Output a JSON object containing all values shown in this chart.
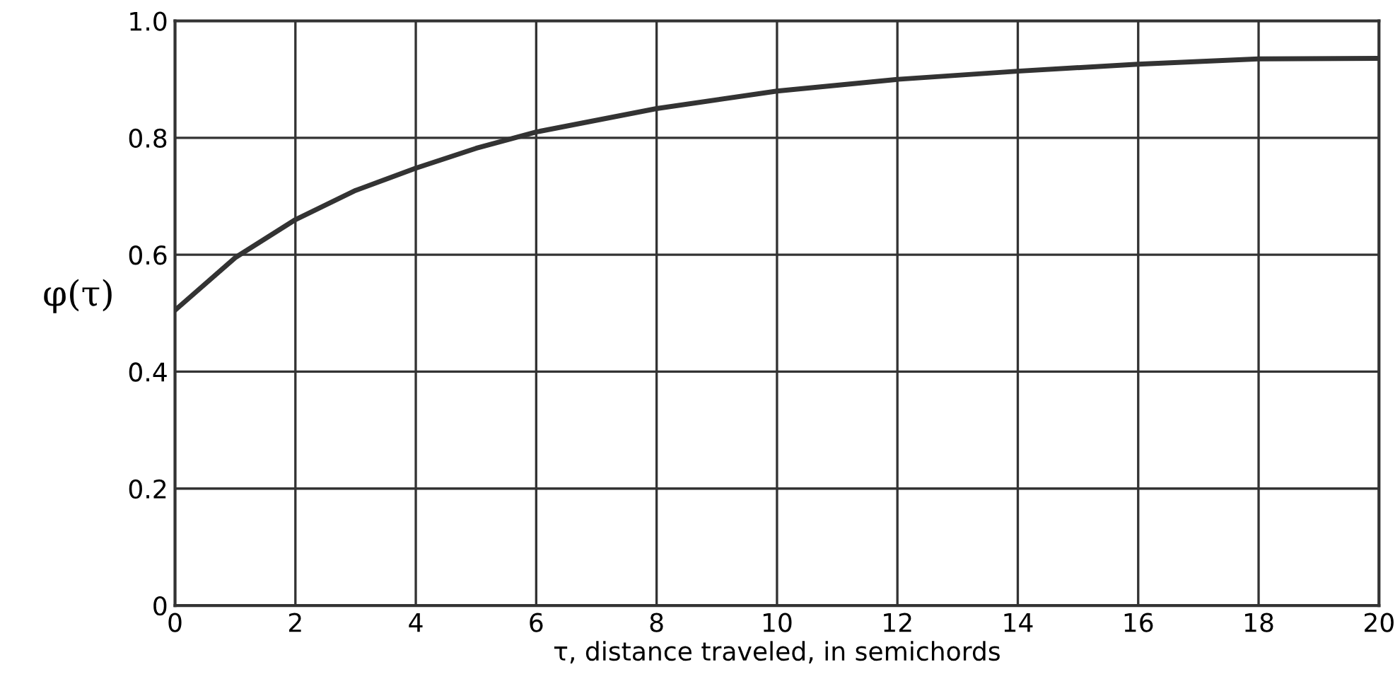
{
  "chart_data": {
    "type": "line",
    "xlabel": "τ, distance traveled, in semichords",
    "ylabel": "φ(τ)",
    "x": [
      0,
      1,
      2,
      3,
      4,
      5,
      6,
      8,
      10,
      12,
      14,
      16,
      18,
      20
    ],
    "series": [
      {
        "color": "#333333",
        "values": [
          0.505,
          0.595,
          0.66,
          0.71,
          0.748,
          0.782,
          0.81,
          0.85,
          0.88,
          0.9,
          0.914,
          0.926,
          0.935,
          0.936
        ]
      }
    ],
    "xlim": [
      0,
      20
    ],
    "xticks": [
      0,
      2,
      4,
      6,
      8,
      10,
      12,
      14,
      16,
      18,
      20
    ],
    "ylim": [
      0,
      1.0
    ],
    "yticks": [
      0,
      0.2,
      0.4,
      0.6,
      0.8,
      {
        "value": 1,
        "label": "1.0"
      }
    ],
    "grid": true,
    "legend": false,
    "marker": "none",
    "line_style": "solid"
  }
}
